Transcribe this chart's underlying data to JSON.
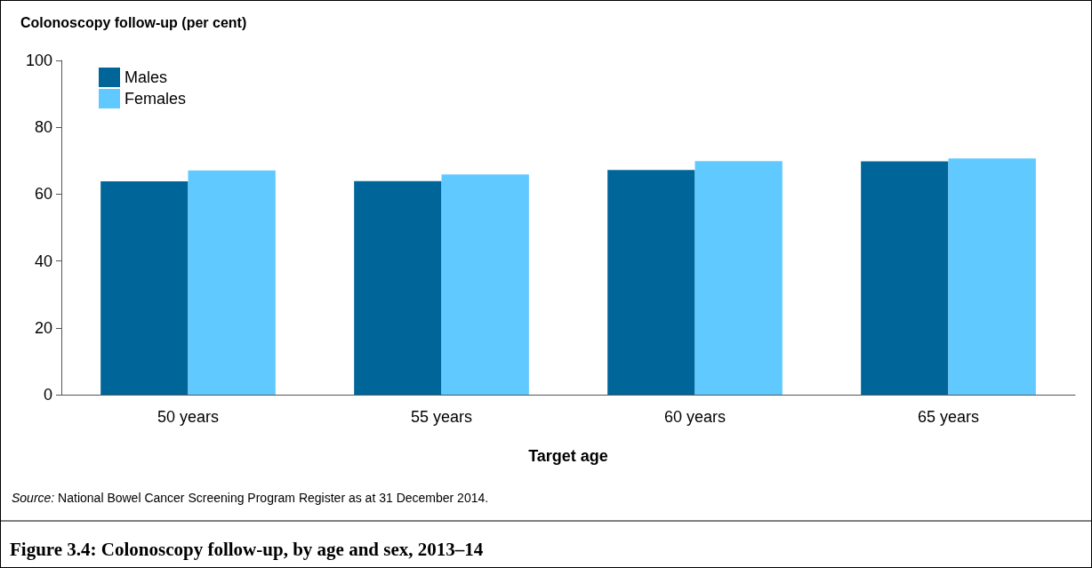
{
  "chart_data": {
    "type": "bar",
    "title": "Figure 3.4: Colonoscopy follow-up, by age and sex, 2013–14",
    "ylabel": "Colonoscopy follow-up (per cent)",
    "xlabel": "Target age",
    "categories": [
      "50 years",
      "55 years",
      "60 years",
      "65 years"
    ],
    "series": [
      {
        "name": "Males",
        "color": "#006699",
        "values": [
          63.8,
          63.9,
          67.2,
          69.8
        ]
      },
      {
        "name": "Females",
        "color": "#60c9ff",
        "values": [
          67.1,
          65.9,
          69.9,
          70.7
        ]
      }
    ],
    "ylim": [
      0,
      100
    ],
    "yticks": [
      0,
      20,
      40,
      60,
      80,
      100
    ],
    "grid": false,
    "legend": "top left",
    "annotations": [
      "Source: National Bowel Cancer Screening Program Register as at 31 December 2014."
    ]
  }
}
